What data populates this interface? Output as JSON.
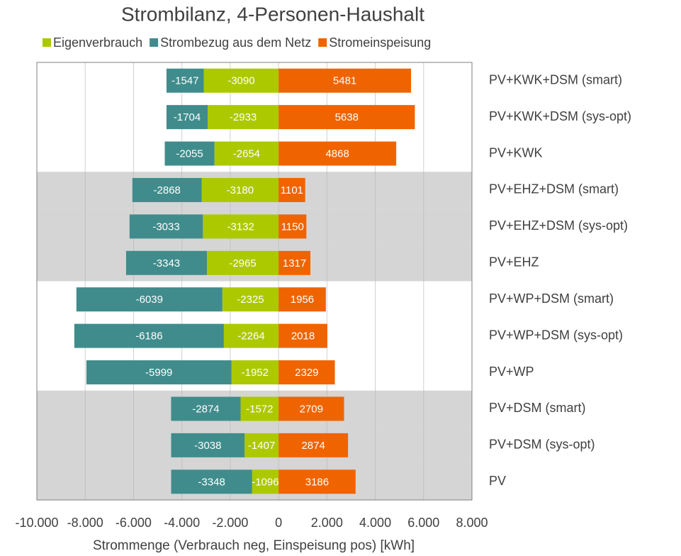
{
  "chart_data": {
    "type": "stacked_barh",
    "title": "Strombilanz, 4-Personen-Haushalt",
    "x_label": "Strommenge (Verbrauch neg, Einspeisung pos) [kWh]",
    "categories": [
      "PV+KWK+DSM (smart)",
      "PV+KWK+DSM (sys-opt)",
      "PV+KWK",
      "PV+EHZ+DSM (smart)",
      "PV+EHZ+DSM (sys-opt)",
      "PV+EHZ",
      "PV+WP+DSM (smart)",
      "PV+WP+DSM (sys-opt)",
      "PV+WP",
      "PV+DSM (smart)",
      "PV+DSM (sys-opt)",
      "PV"
    ],
    "series": [
      {
        "name": "Eigenverbrauch",
        "color": "#acc900",
        "values": [
          -3090,
          -2933,
          -2654,
          -3180,
          -3132,
          -2965,
          -2325,
          -2264,
          -1952,
          -1572,
          -1407,
          -1096
        ]
      },
      {
        "name": "Strombezug aus dem Netz",
        "color": "#408c8c",
        "values": [
          -1547,
          -1704,
          -2055,
          -2868,
          -3033,
          -3343,
          -6039,
          -6186,
          -5999,
          -2874,
          -3038,
          -3348
        ]
      },
      {
        "name": "Stromeinspeisung",
        "color": "#f06400",
        "values": [
          5481,
          5638,
          4868,
          1101,
          1150,
          1317,
          1956,
          2018,
          2329,
          2709,
          2874,
          3186
        ]
      }
    ],
    "xlim": [
      -10000,
      8000
    ],
    "xticks": [
      {
        "value": -10000,
        "label": "-10.000"
      },
      {
        "value": -8000,
        "label": "-8.000"
      },
      {
        "value": -6000,
        "label": "-6.000"
      },
      {
        "value": -4000,
        "label": "-4.000"
      },
      {
        "value": -2000,
        "label": "-2.000"
      },
      0,
      {
        "value": 2000,
        "label": "2.000"
      },
      {
        "value": 4000,
        "label": "4.000"
      },
      {
        "value": 6000,
        "label": "6.000"
      },
      {
        "value": 8000,
        "label": "8.000"
      }
    ],
    "grid": true,
    "legend": "top",
    "shaded_rows": [
      3,
      4,
      5,
      9,
      10,
      11
    ]
  }
}
